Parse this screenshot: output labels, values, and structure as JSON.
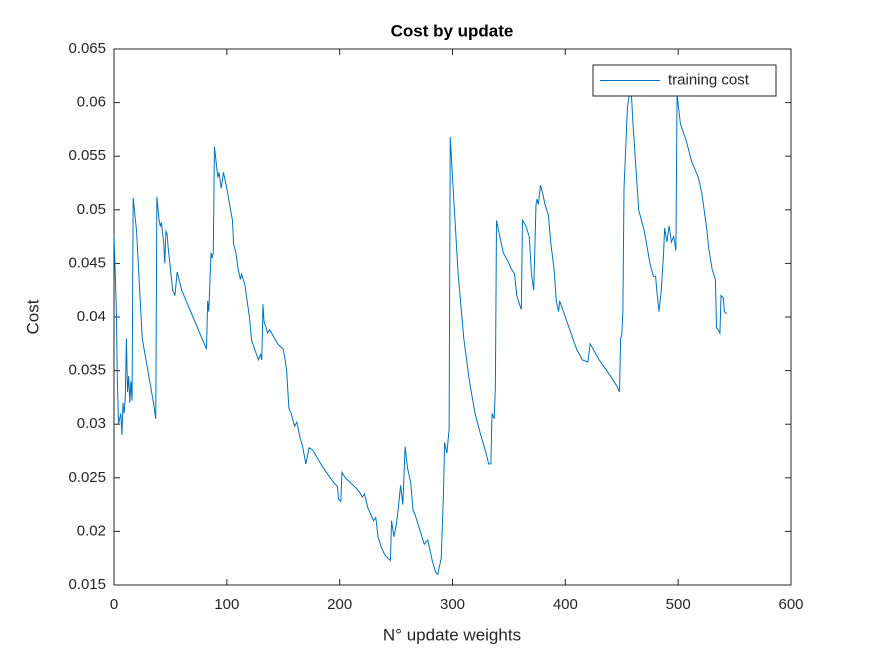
{
  "chart_data": {
    "type": "line",
    "title": "Cost by update",
    "x_label": "N° update weights",
    "y_label": "Cost",
    "x": [
      0,
      2,
      3,
      4,
      6,
      7,
      8,
      9,
      10,
      11,
      12,
      13,
      14,
      15,
      16,
      17,
      20,
      25,
      30,
      35,
      37,
      38,
      40,
      41,
      42,
      44,
      45,
      46,
      47,
      48,
      52,
      54,
      56,
      60,
      70,
      80,
      82,
      83,
      84,
      86,
      87,
      88,
      89,
      92,
      93,
      95,
      97,
      100,
      105,
      106,
      108,
      110,
      112,
      113,
      116,
      120,
      122,
      128,
      130,
      131,
      132,
      133,
      135,
      136,
      138,
      145,
      150,
      152,
      153,
      155,
      157,
      160,
      162,
      165,
      167,
      170,
      173,
      176,
      185,
      195,
      198,
      199,
      201,
      202,
      205,
      215,
      218,
      220,
      222,
      225,
      230,
      232,
      234,
      237,
      240,
      243,
      245,
      246,
      248,
      250,
      252,
      254,
      256,
      258,
      260,
      263,
      265,
      267,
      270,
      272,
      275,
      278,
      281,
      282,
      285,
      287,
      290,
      291,
      292,
      293,
      295,
      297,
      298,
      300,
      305,
      310,
      315,
      320,
      325,
      330,
      332,
      334,
      335,
      337,
      338,
      339,
      342,
      345,
      350,
      352,
      355,
      357,
      360,
      361,
      362,
      365,
      368,
      370,
      372,
      374,
      375,
      376,
      378,
      380,
      382,
      385,
      387,
      390,
      392,
      394,
      395,
      400,
      410,
      415,
      420,
      422,
      430,
      440,
      446,
      448,
      449,
      450,
      451,
      452,
      455,
      457,
      458,
      460,
      465,
      470,
      475,
      478,
      480,
      481,
      483,
      485,
      487,
      488,
      490,
      492,
      494,
      496,
      498,
      499,
      502,
      507,
      512,
      518,
      521,
      525,
      527,
      530,
      533,
      534,
      536,
      537,
      538,
      540,
      541,
      543
    ],
    "series": [
      {
        "name": "training cost",
        "color": "#0072bd",
        "values": [
          0.0477,
          0.041,
          0.034,
          0.03,
          0.031,
          0.029,
          0.032,
          0.031,
          0.0325,
          0.038,
          0.033,
          0.0345,
          0.032,
          0.034,
          0.0322,
          0.0511,
          0.048,
          0.038,
          0.035,
          0.032,
          0.0305,
          0.0512,
          0.049,
          0.0485,
          0.0488,
          0.047,
          0.045,
          0.048,
          0.0478,
          0.0465,
          0.0425,
          0.042,
          0.0442,
          0.0425,
          0.04,
          0.0375,
          0.037,
          0.0415,
          0.0405,
          0.046,
          0.0455,
          0.046,
          0.0559,
          0.053,
          0.0535,
          0.052,
          0.0535,
          0.052,
          0.049,
          0.0468,
          0.046,
          0.0445,
          0.0435,
          0.044,
          0.043,
          0.04,
          0.0378,
          0.036,
          0.0365,
          0.036,
          0.0412,
          0.0395,
          0.039,
          0.0385,
          0.0388,
          0.0375,
          0.037,
          0.0358,
          0.035,
          0.0315,
          0.031,
          0.0298,
          0.0302,
          0.0287,
          0.028,
          0.0263,
          0.0278,
          0.0276,
          0.026,
          0.0245,
          0.0242,
          0.023,
          0.0228,
          0.0255,
          0.025,
          0.024,
          0.0236,
          0.0232,
          0.0235,
          0.0222,
          0.021,
          0.0213,
          0.0195,
          0.0185,
          0.0178,
          0.0175,
          0.0173,
          0.021,
          0.0195,
          0.0205,
          0.0222,
          0.0243,
          0.0225,
          0.0279,
          0.026,
          0.0245,
          0.022,
          0.0215,
          0.0205,
          0.0198,
          0.0188,
          0.0192,
          0.0178,
          0.0173,
          0.0162,
          0.016,
          0.0175,
          0.0205,
          0.0235,
          0.0283,
          0.0273,
          0.0295,
          0.0568,
          0.053,
          0.044,
          0.038,
          0.034,
          0.031,
          0.029,
          0.0272,
          0.0263,
          0.0263,
          0.031,
          0.0305,
          0.0335,
          0.049,
          0.0475,
          0.046,
          0.045,
          0.0445,
          0.044,
          0.042,
          0.041,
          0.0407,
          0.049,
          0.0485,
          0.0475,
          0.044,
          0.0425,
          0.0505,
          0.051,
          0.0505,
          0.0523,
          0.0515,
          0.0505,
          0.0495,
          0.047,
          0.0445,
          0.0415,
          0.0405,
          0.0415,
          0.04,
          0.037,
          0.036,
          0.0358,
          0.0375,
          0.036,
          0.0345,
          0.0335,
          0.033,
          0.038,
          0.0383,
          0.0405,
          0.052,
          0.0595,
          0.061,
          0.0618,
          0.058,
          0.05,
          0.048,
          0.045,
          0.0438,
          0.0438,
          0.0425,
          0.0405,
          0.0425,
          0.0458,
          0.0483,
          0.047,
          0.0485,
          0.047,
          0.0475,
          0.0462,
          0.0608,
          0.058,
          0.0565,
          0.0545,
          0.053,
          0.0515,
          0.0485,
          0.0465,
          0.0445,
          0.0435,
          0.039,
          0.0387,
          0.0385,
          0.042,
          0.0418,
          0.0405,
          0.0403
        ]
      }
    ],
    "xlim": [
      0,
      600
    ],
    "xticks": [
      0,
      100,
      200,
      300,
      400,
      500,
      600
    ],
    "ylim": [
      0.015,
      0.065
    ],
    "yticks": [
      0.015,
      0.02,
      0.025,
      0.03,
      0.035,
      0.04,
      0.045,
      0.05,
      0.055,
      0.06,
      0.065
    ],
    "legend": "northeast"
  }
}
